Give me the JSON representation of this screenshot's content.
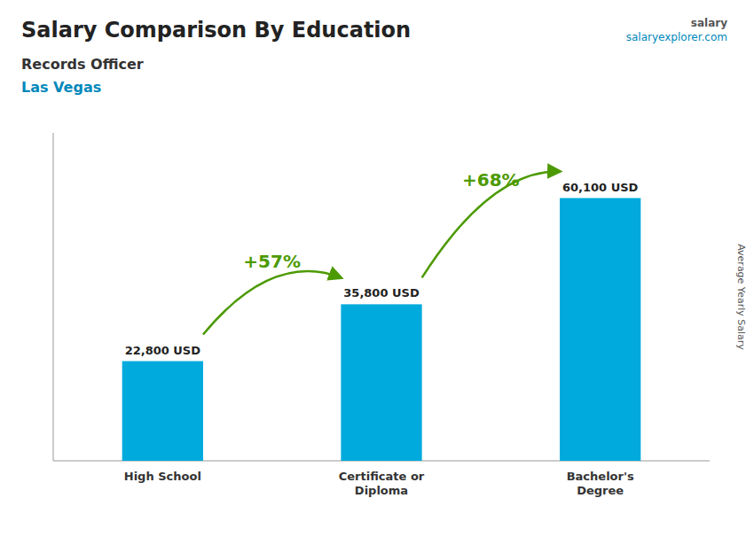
{
  "chart_data": {
    "type": "bar",
    "title": "Salary Comparison By Education",
    "subtitle": [
      "Records Officer",
      "Las Vegas"
    ],
    "categories": [
      "High School",
      "Certificate or\nDiploma",
      "Bachelor's\nDegree"
    ],
    "values": [
      22800,
      35800,
      60100
    ],
    "value_labels": [
      "22,800 USD",
      "35,800 USD",
      "60,100 USD"
    ],
    "data_labels": true,
    "color": "#00aadd",
    "annotations": [
      "+57%",
      "+68%"
    ],
    "watermark": [
      "salary",
      "salaryexplorer.com"
    ],
    "ylabel": "Average Yearly Salary",
    "ylim": [
      0,
      75000
    ],
    "yticks": [],
    "tick_labels": "x",
    "grid": false
  }
}
